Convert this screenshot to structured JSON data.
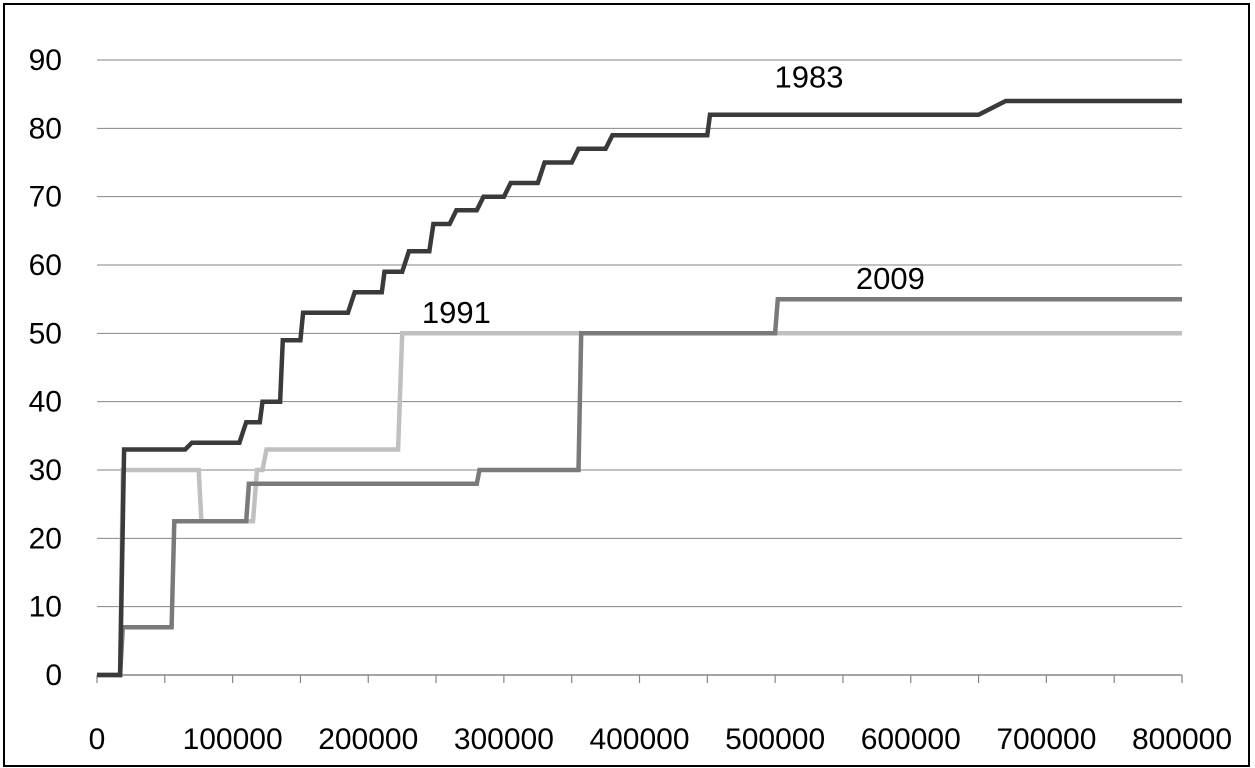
{
  "chart_data": {
    "type": "line",
    "title": "",
    "xlabel": "",
    "ylabel": "",
    "xlim": [
      0,
      800000
    ],
    "ylim": [
      0,
      90
    ],
    "x_ticks": [
      0,
      100000,
      200000,
      300000,
      400000,
      500000,
      600000,
      700000,
      800000
    ],
    "y_ticks": [
      0,
      10,
      20,
      30,
      40,
      50,
      60,
      70,
      80,
      90
    ],
    "grid": "horizontal",
    "legend": "none",
    "step": true,
    "series": [
      {
        "name": "1983",
        "color": "#3a3a3a",
        "x": [
          0,
          17000,
          20000,
          40000,
          45000,
          65000,
          70000,
          105000,
          110000,
          120000,
          122000,
          135000,
          137000,
          150000,
          152000,
          165000,
          170000,
          185000,
          190000,
          210000,
          212000,
          225000,
          230000,
          245000,
          248000,
          260000,
          265000,
          280000,
          285000,
          300000,
          305000,
          325000,
          330000,
          350000,
          355000,
          375000,
          380000,
          400000,
          410000,
          450000,
          452000,
          650000,
          670000,
          800000
        ],
        "y": [
          0,
          0,
          33,
          33,
          33,
          33,
          34,
          34,
          37,
          37,
          40,
          40,
          49,
          49,
          53,
          53,
          53,
          53,
          56,
          56,
          59,
          59,
          62,
          62,
          66,
          66,
          68,
          68,
          70,
          70,
          72,
          72,
          75,
          75,
          77,
          77,
          79,
          79,
          79,
          79,
          82,
          82,
          84,
          84
        ]
      },
      {
        "name": "1991",
        "color": "#c0c0c0",
        "x": [
          0,
          17000,
          19000,
          75000,
          77000,
          115000,
          118000,
          122000,
          125000,
          222000,
          225000,
          800000
        ],
        "y": [
          0,
          0,
          30,
          30,
          22.5,
          22.5,
          30,
          30,
          33,
          33,
          50,
          50
        ],
        "label": "1991"
      },
      {
        "name": "2009",
        "color": "#7a7a7a",
        "x": [
          0,
          17000,
          19000,
          55000,
          57000,
          110000,
          112000,
          280000,
          282000,
          355000,
          357000,
          500000,
          502000,
          800000
        ],
        "y": [
          0,
          0,
          7,
          7,
          22.5,
          22.5,
          28,
          28,
          30,
          30,
          50,
          50,
          55,
          55
        ],
        "label": "2009"
      }
    ],
    "annotations": [
      {
        "text": "1983",
        "x": 525000,
        "y": 86
      },
      {
        "text": "1991",
        "x": 265000,
        "y": 51.5
      },
      {
        "text": "2009",
        "x": 585000,
        "y": 56.5
      }
    ]
  }
}
